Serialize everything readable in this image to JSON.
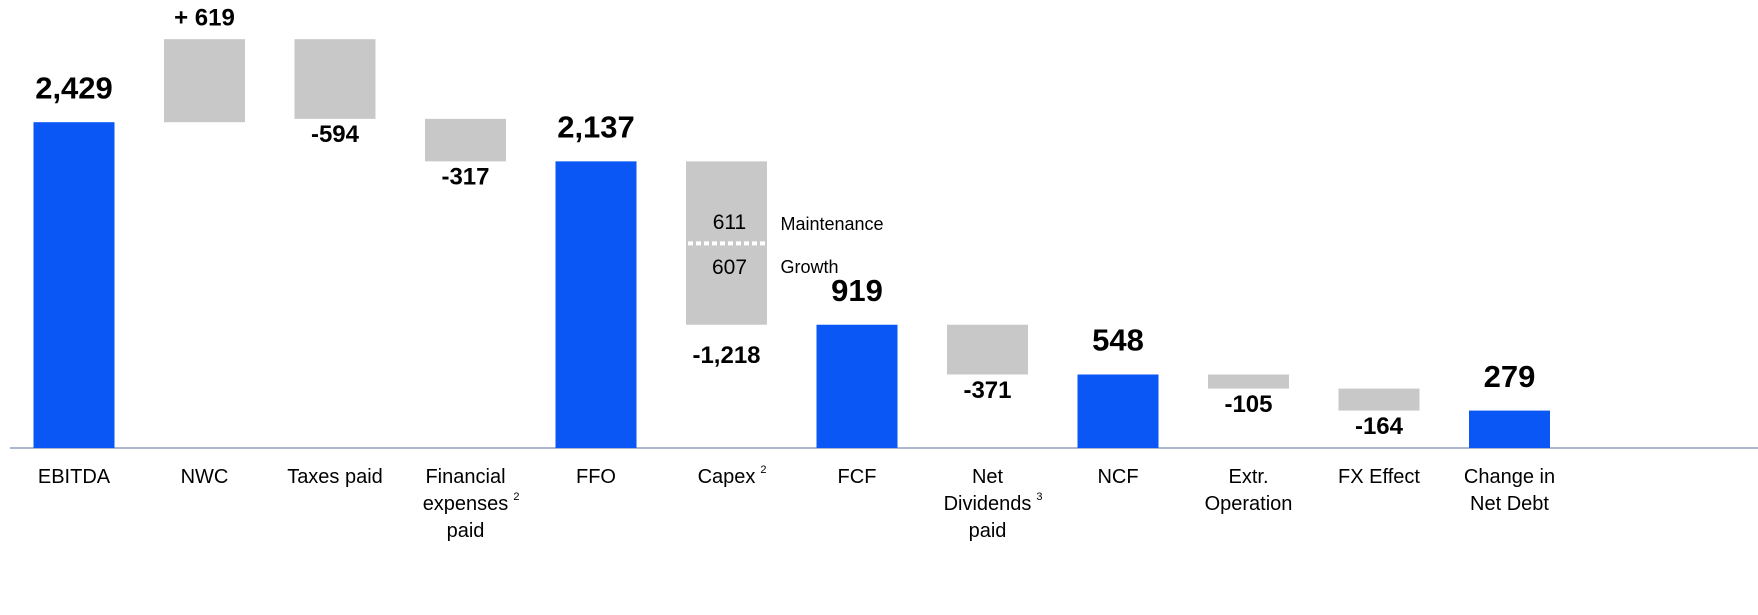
{
  "chart_data": {
    "type": "waterfall",
    "categories": [
      "EBITDA",
      "NWC",
      "Taxes paid",
      "Financial expenses paid",
      "FFO",
      "Capex",
      "FCF",
      "Net Dividends paid",
      "NCF",
      "Extr. Operation",
      "FX Effect",
      "Change in Net Debt"
    ],
    "category_notes": [
      null,
      null,
      null,
      "2",
      null,
      "2",
      null,
      "3",
      null,
      null,
      null,
      null
    ],
    "values": [
      2429,
      619,
      -594,
      -317,
      2137,
      -1218,
      919,
      -371,
      548,
      -105,
      -164,
      279
    ],
    "value_labels": [
      "2,429",
      "+ 619",
      "-594",
      "-317",
      "2,137",
      "-1,218",
      "919",
      "-371",
      "548",
      "-105",
      "-164",
      "279"
    ],
    "measure": [
      "total",
      "relative",
      "relative",
      "relative",
      "total",
      "relative",
      "total",
      "relative",
      "total",
      "relative",
      "relative",
      "total"
    ],
    "colors": {
      "total": "#0a57f5",
      "relative": "#c8c8c8"
    },
    "breakdown": {
      "category": 5,
      "parts": [
        {
          "value": 611,
          "label": "Maintenance"
        },
        {
          "value": 607,
          "label": "Growth"
        }
      ]
    },
    "ylim": [
      0,
      3340
    ]
  }
}
